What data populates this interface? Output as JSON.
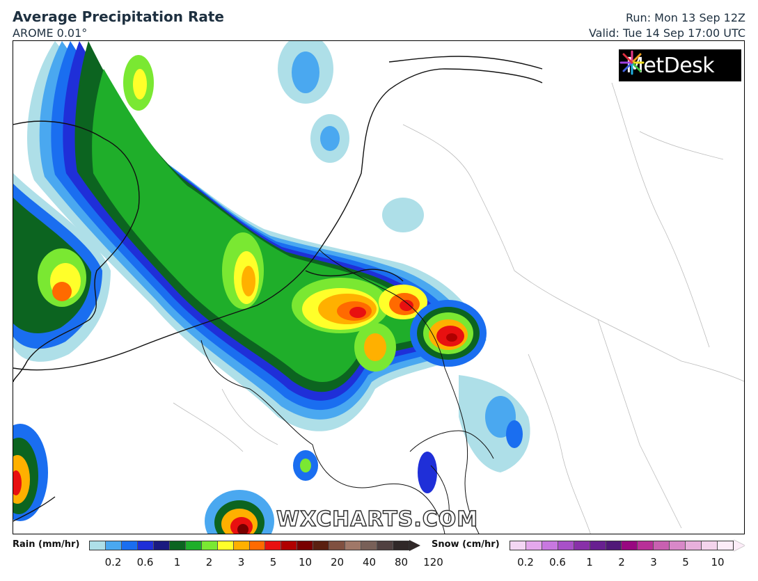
{
  "header": {
    "title": "Average Precipitation Rate",
    "model": "AROME 0.01°",
    "run": "Run: Mon 13 Sep 12Z",
    "valid": "Valid: Tue 14 Sep 17:00 UTC"
  },
  "logo": {
    "text": "MetDesk",
    "icon": "starburst-logo-icon"
  },
  "watermark": "WXCHARTS.COM",
  "legend": {
    "rain": {
      "label": "Rain (mm/hr)",
      "colors": [
        "#aedfe8",
        "#4aa8f0",
        "#1a6ef0",
        "#1f2fd8",
        "#1a1a80",
        "#0c6420",
        "#1fae2a",
        "#7ae832",
        "#ffff2a",
        "#ffb000",
        "#ff6a00",
        "#e81010",
        "#b00000",
        "#780000",
        "#5a2010",
        "#805040",
        "#a07868",
        "#786058",
        "#504040",
        "#302828"
      ],
      "ticks": [
        {
          "label": "0.2",
          "pos": 1.5
        },
        {
          "label": "0.6",
          "pos": 3.5
        },
        {
          "label": "1",
          "pos": 5.5
        },
        {
          "label": "2",
          "pos": 7.5
        },
        {
          "label": "3",
          "pos": 9.5
        },
        {
          "label": "5",
          "pos": 11.5
        },
        {
          "label": "10",
          "pos": 13.5
        },
        {
          "label": "20",
          "pos": 15.5
        },
        {
          "label": "40",
          "pos": 17.5
        },
        {
          "label": "80",
          "pos": 19.5
        },
        {
          "label": "120",
          "pos": 21.5
        }
      ]
    },
    "snow": {
      "label": "Snow (cm/hr)",
      "colors": [
        "#f4d6f4",
        "#e4a8ec",
        "#c878e0",
        "#a850c8",
        "#8830a8",
        "#682090",
        "#501878",
        "#980880",
        "#b83098",
        "#c860b0",
        "#d888c8",
        "#e8b0dc",
        "#f4d4ec",
        "#fcecf8"
      ],
      "ticks": [
        {
          "label": "0.2",
          "pos": 1
        },
        {
          "label": "0.6",
          "pos": 3
        },
        {
          "label": "1",
          "pos": 5
        },
        {
          "label": "2",
          "pos": 7
        },
        {
          "label": "3",
          "pos": 9
        },
        {
          "label": "5",
          "pos": 11
        },
        {
          "label": "10",
          "pos": 13
        }
      ]
    }
  }
}
